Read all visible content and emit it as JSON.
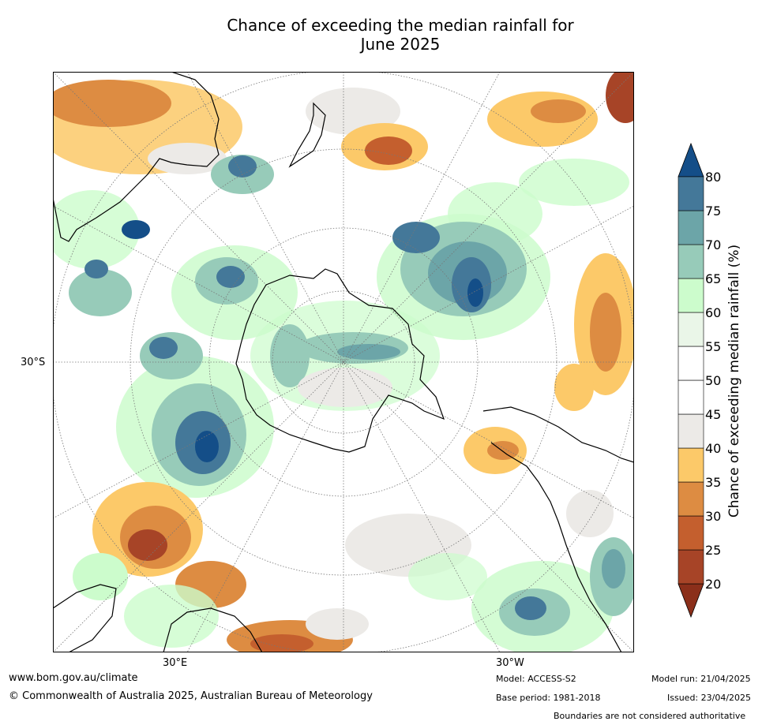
{
  "title_line1": "Chance of exceeding the median rainfall for",
  "title_line2": "June 2025",
  "map": {
    "labels": {
      "lat_30s": "30°S",
      "lon_30e": "30°E",
      "lon_30w": "30°W"
    }
  },
  "colorbar": {
    "label": "Chance of exceeding median rainfall (%)",
    "ticks": [
      "20",
      "25",
      "30",
      "35",
      "40",
      "45",
      "50",
      "55",
      "60",
      "65",
      "70",
      "75",
      "80"
    ],
    "colors": {
      "below_20": "#8b2f1a",
      "20_25": "#a74427",
      "25_30": "#c45f2e",
      "30_35": "#dd8c42",
      "35_40": "#fcc969",
      "40_45": "#eceae7",
      "45_50": "#ffffff",
      "50_55": "#ffffff",
      "55_60": "#eaf6e8",
      "60_65": "#ccfccc",
      "65_70": "#97cbb9",
      "70_75": "#6ca5a8",
      "75_80": "#447899",
      "above_80": "#144e88"
    }
  },
  "footer": {
    "url": "www.bom.gov.au/climate",
    "copyright": "© Commonwealth of Australia 2025, Australian Bureau of Meteorology",
    "model": "Model: ACCESS-S2",
    "base_period": "Base period: 1981-2018",
    "model_run": "Model run: 21/04/2025",
    "issued": "Issued: 23/04/2025",
    "disclaimer": "Boundaries are not considered authoritative"
  }
}
